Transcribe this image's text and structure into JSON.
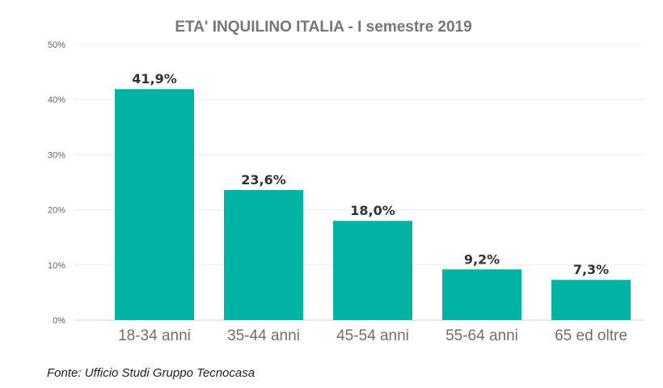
{
  "chart_data": {
    "type": "bar",
    "title": "ETA' INQUILINO ITALIA - I semestre 2019",
    "categories": [
      "18-34 anni",
      "35-44 anni",
      "45-54 anni",
      "55-64 anni",
      "65 ed oltre"
    ],
    "values": [
      41.9,
      23.6,
      18.0,
      9.2,
      7.3
    ],
    "data_labels": [
      "41,9%",
      "23,6%",
      "18,0%",
      "9,2%",
      "7,3%"
    ],
    "ylim": [
      0,
      50
    ],
    "yticks": [
      0,
      10,
      20,
      30,
      40,
      50
    ],
    "ytick_labels": [
      "0%",
      "10%",
      "20%",
      "30%",
      "40%",
      "50%"
    ],
    "grid": true,
    "legend": "none",
    "bar_color": "#00b3a4",
    "xlabel": "",
    "ylabel": ""
  },
  "source": "Fonte: Ufficio Studi Gruppo Tecnocasa"
}
